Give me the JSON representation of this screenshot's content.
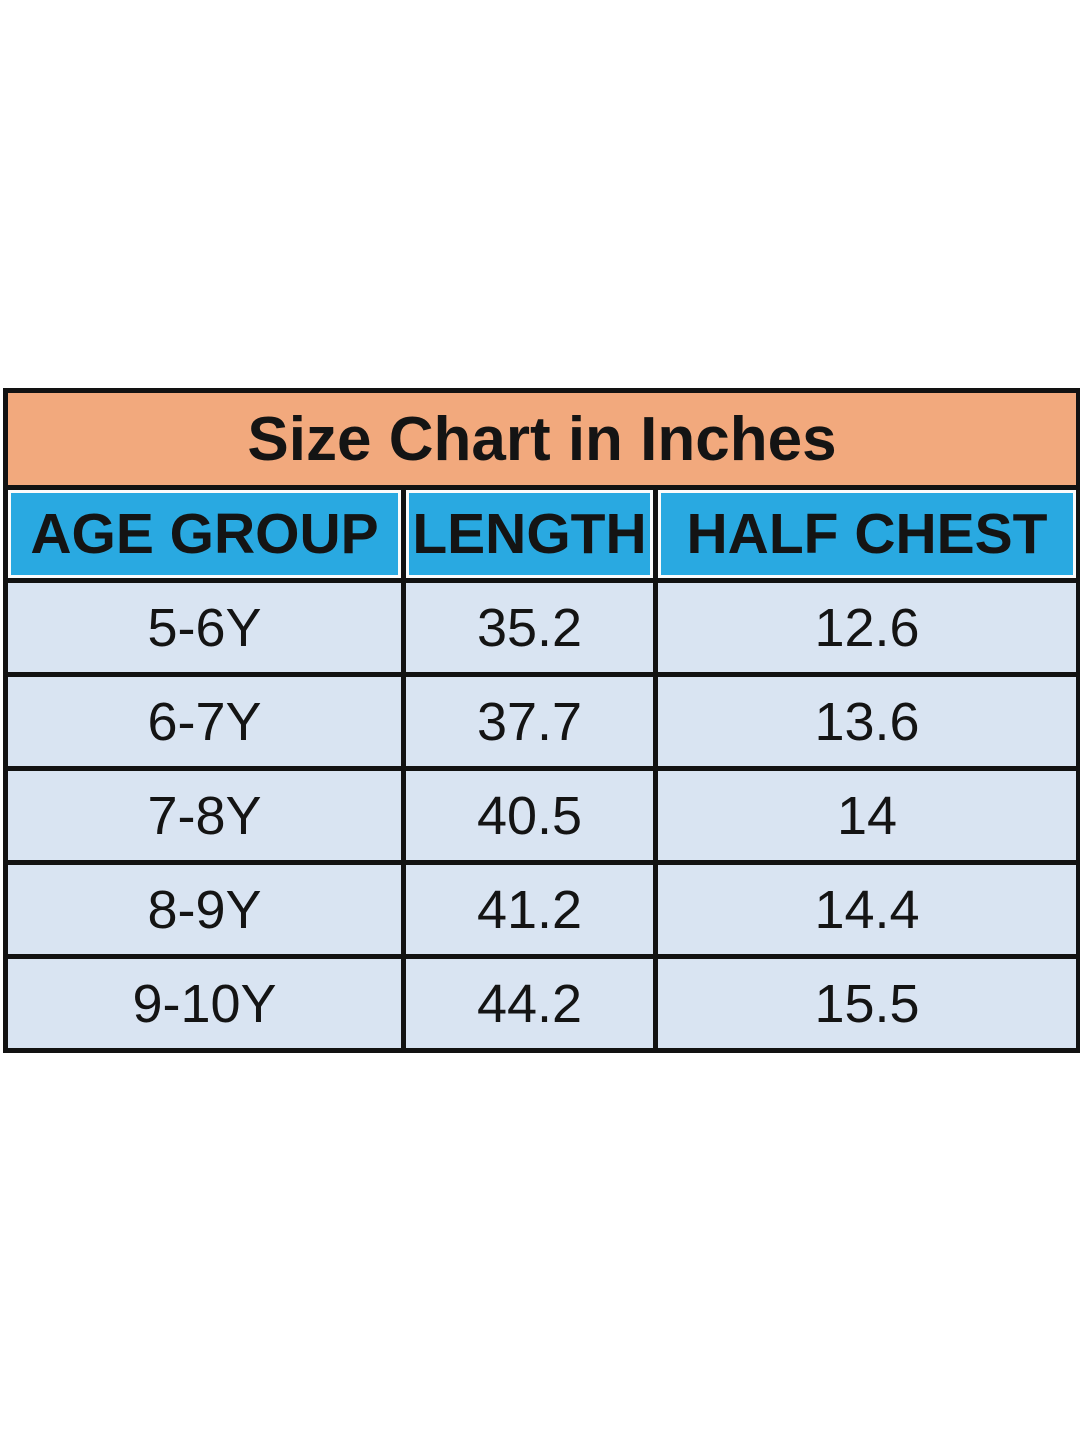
{
  "page": {
    "background": "#ffffff"
  },
  "table": {
    "title": "Size Chart in Inches",
    "columns": [
      "AGE GROUP",
      "LENGTH",
      "HALF CHEST"
    ],
    "rows": [
      [
        "5-6Y",
        "35.2",
        "12.6"
      ],
      [
        "6-7Y",
        "37.7",
        "13.6"
      ],
      [
        "7-8Y",
        "40.5",
        "14"
      ],
      [
        "8-9Y",
        "41.2",
        "14.4"
      ],
      [
        "9-10Y",
        "44.2",
        "15.5"
      ]
    ],
    "colors": {
      "title_bg": "#f2a97d",
      "header_bg": "#29a9e1",
      "row_bg": "#d9e4f2",
      "border": "#121212",
      "text": "#141414"
    }
  },
  "chart_data": {
    "type": "table",
    "title": "Size Chart in Inches",
    "units": "inches",
    "columns": [
      "AGE GROUP",
      "LENGTH",
      "HALF CHEST"
    ],
    "rows": [
      {
        "age_group": "5-6Y",
        "length": 35.2,
        "half_chest": 12.6
      },
      {
        "age_group": "6-7Y",
        "length": 37.7,
        "half_chest": 13.6
      },
      {
        "age_group": "7-8Y",
        "length": 40.5,
        "half_chest": 14
      },
      {
        "age_group": "8-9Y",
        "length": 41.2,
        "half_chest": 14.4
      },
      {
        "age_group": "9-10Y",
        "length": 44.2,
        "half_chest": 15.5
      }
    ]
  }
}
